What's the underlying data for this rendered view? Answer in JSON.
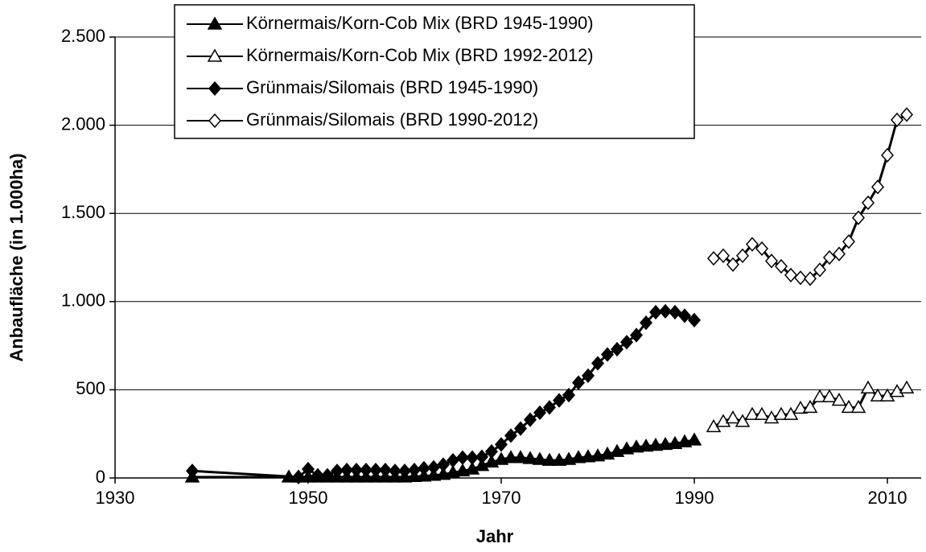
{
  "chart_data": {
    "type": "line",
    "xlabel": "Jahr",
    "ylabel": "Anbaufläche (in 1.000ha)",
    "xlim": [
      1930,
      2013
    ],
    "xticks": [
      1930,
      1950,
      1970,
      1990,
      2010
    ],
    "ylim": [
      0,
      2500
    ],
    "yticks": [
      0,
      500,
      {
        "value": 1000,
        "label": "1.000"
      },
      {
        "value": 1500,
        "label": "1.500"
      },
      {
        "value": 2000,
        "label": "2.000"
      },
      {
        "value": 2500,
        "label": "2.500"
      }
    ],
    "grid": true,
    "legend": "top-left",
    "series": [
      {
        "name": "Körnermais/Korn-Cob Mix (BRD 1945-1990)",
        "color": "#000000",
        "marker": "triangle",
        "filled": true,
        "x": [
          1938,
          1948,
          1949,
          1950,
          1951,
          1952,
          1953,
          1954,
          1955,
          1956,
          1957,
          1958,
          1959,
          1960,
          1961,
          1962,
          1963,
          1964,
          1965,
          1966,
          1967,
          1968,
          1969,
          1970,
          1971,
          1972,
          1973,
          1974,
          1975,
          1976,
          1977,
          1978,
          1979,
          1980,
          1981,
          1982,
          1983,
          1984,
          1985,
          1986,
          1987,
          1988,
          1989,
          1990
        ],
        "values": [
          5,
          5,
          5,
          5,
          5,
          5,
          5,
          5,
          5,
          5,
          5,
          5,
          5,
          5,
          8,
          10,
          15,
          20,
          30,
          40,
          50,
          70,
          90,
          105,
          115,
          115,
          110,
          105,
          100,
          100,
          105,
          115,
          120,
          125,
          135,
          150,
          165,
          175,
          180,
          185,
          190,
          195,
          205,
          215
        ]
      },
      {
        "name": "Körnermais/Korn-Cob Mix (BRD 1992-2012)",
        "color": "#000000",
        "marker": "triangle",
        "filled": false,
        "x": [
          1992,
          1993,
          1994,
          1995,
          1996,
          1997,
          1998,
          1999,
          2000,
          2001,
          2002,
          2003,
          2004,
          2005,
          2006,
          2007,
          2008,
          2009,
          2010,
          2011,
          2012
        ],
        "values": [
          290,
          320,
          340,
          320,
          360,
          360,
          340,
          360,
          360,
          395,
          400,
          460,
          460,
          440,
          400,
          400,
          510,
          465,
          465,
          490,
          510
        ]
      },
      {
        "name": "Grünmais/Silomais (BRD 1945-1990)",
        "color": "#000000",
        "marker": "diamond",
        "filled": true,
        "x": [
          1938,
          1949,
          1950,
          1951,
          1952,
          1953,
          1954,
          1955,
          1956,
          1957,
          1958,
          1959,
          1960,
          1961,
          1962,
          1963,
          1964,
          1965,
          1966,
          1967,
          1968,
          1969,
          1970,
          1971,
          1972,
          1973,
          1974,
          1975,
          1976,
          1977,
          1978,
          1979,
          1980,
          1981,
          1982,
          1983,
          1984,
          1985,
          1986,
          1987,
          1988,
          1989,
          1990
        ],
        "values": [
          40,
          5,
          50,
          15,
          15,
          40,
          45,
          45,
          45,
          45,
          45,
          40,
          40,
          45,
          55,
          60,
          75,
          100,
          115,
          115,
          120,
          150,
          190,
          240,
          280,
          330,
          370,
          400,
          440,
          470,
          540,
          580,
          650,
          700,
          730,
          770,
          810,
          880,
          940,
          945,
          940,
          920,
          895
        ]
      },
      {
        "name": "Grünmais/Silomais (BRD 1990-2012)",
        "color": "#000000",
        "marker": "diamond",
        "filled": false,
        "x": [
          1992,
          1993,
          1994,
          1995,
          1996,
          1997,
          1998,
          1999,
          2000,
          2001,
          2002,
          2003,
          2004,
          2005,
          2006,
          2007,
          2008,
          2009,
          2010,
          2011,
          2012
        ],
        "values": [
          1245,
          1260,
          1210,
          1260,
          1325,
          1300,
          1230,
          1200,
          1150,
          1135,
          1130,
          1180,
          1250,
          1270,
          1340,
          1475,
          1560,
          1650,
          1830,
          2030,
          2060
        ]
      }
    ]
  }
}
